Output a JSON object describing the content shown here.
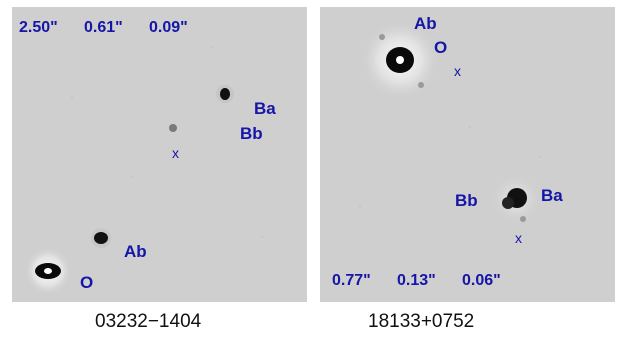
{
  "panels": [
    {
      "caption": "03232−1404",
      "scale_labels": [
        "2.50\"",
        "0.61\"",
        "0.09\""
      ],
      "component_labels": {
        "Ba": "Ba",
        "Bb": "Bb",
        "Ab": "Ab",
        "O": "O",
        "x": "x"
      }
    },
    {
      "caption": "18133+0752",
      "scale_labels": [
        "0.77\"",
        "0.13\"",
        "0.06\""
      ],
      "component_labels": {
        "Ab": "Ab",
        "O": "O",
        "x": "x",
        "Bb": "Bb",
        "Ba": "Ba"
      }
    }
  ],
  "colors": {
    "label": "#1515a8",
    "background": "#cfcfcf"
  }
}
